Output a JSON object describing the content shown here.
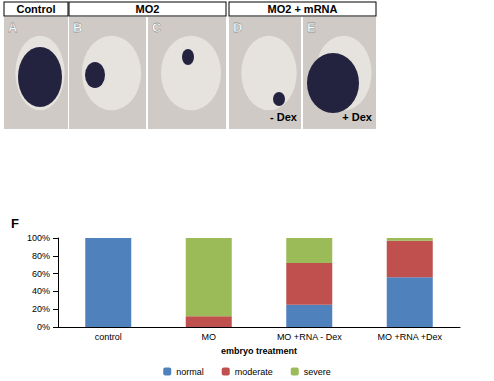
{
  "panels": {
    "headers": [
      "Control",
      "MO2",
      "MO2 + mRNA"
    ],
    "photos": [
      {
        "letter": "A"
      },
      {
        "letter": "B"
      },
      {
        "letter": "C"
      },
      {
        "letter": "D",
        "caption": "- Dex"
      },
      {
        "letter": "E",
        "caption": "+ Dex"
      }
    ]
  },
  "chart_data": {
    "type": "bar",
    "title": "F",
    "x_label": "embryo treatment",
    "categories": [
      "control",
      "MO",
      "MO +RNA - Dex",
      "MO +RNA +Dex"
    ],
    "series": [
      {
        "name": "normal",
        "color": "#4f81bd",
        "values": [
          100,
          0,
          25,
          56
        ]
      },
      {
        "name": "moderate",
        "color": "#c0504d",
        "values": [
          0,
          12,
          47,
          41
        ]
      },
      {
        "name": "severe",
        "color": "#9bbb59",
        "values": [
          0,
          88,
          28,
          3
        ]
      }
    ],
    "stacked": true,
    "ylim": [
      0,
      100
    ],
    "yticks": [
      {
        "value": 0,
        "label": "0%"
      },
      {
        "value": 20,
        "label": "20%"
      },
      {
        "value": 40,
        "label": "40%"
      },
      {
        "value": 60,
        "label": "60%"
      },
      {
        "value": 80,
        "label": "80%"
      },
      {
        "value": 100,
        "label": "100%"
      }
    ],
    "grid": false,
    "legend": "bottom"
  }
}
